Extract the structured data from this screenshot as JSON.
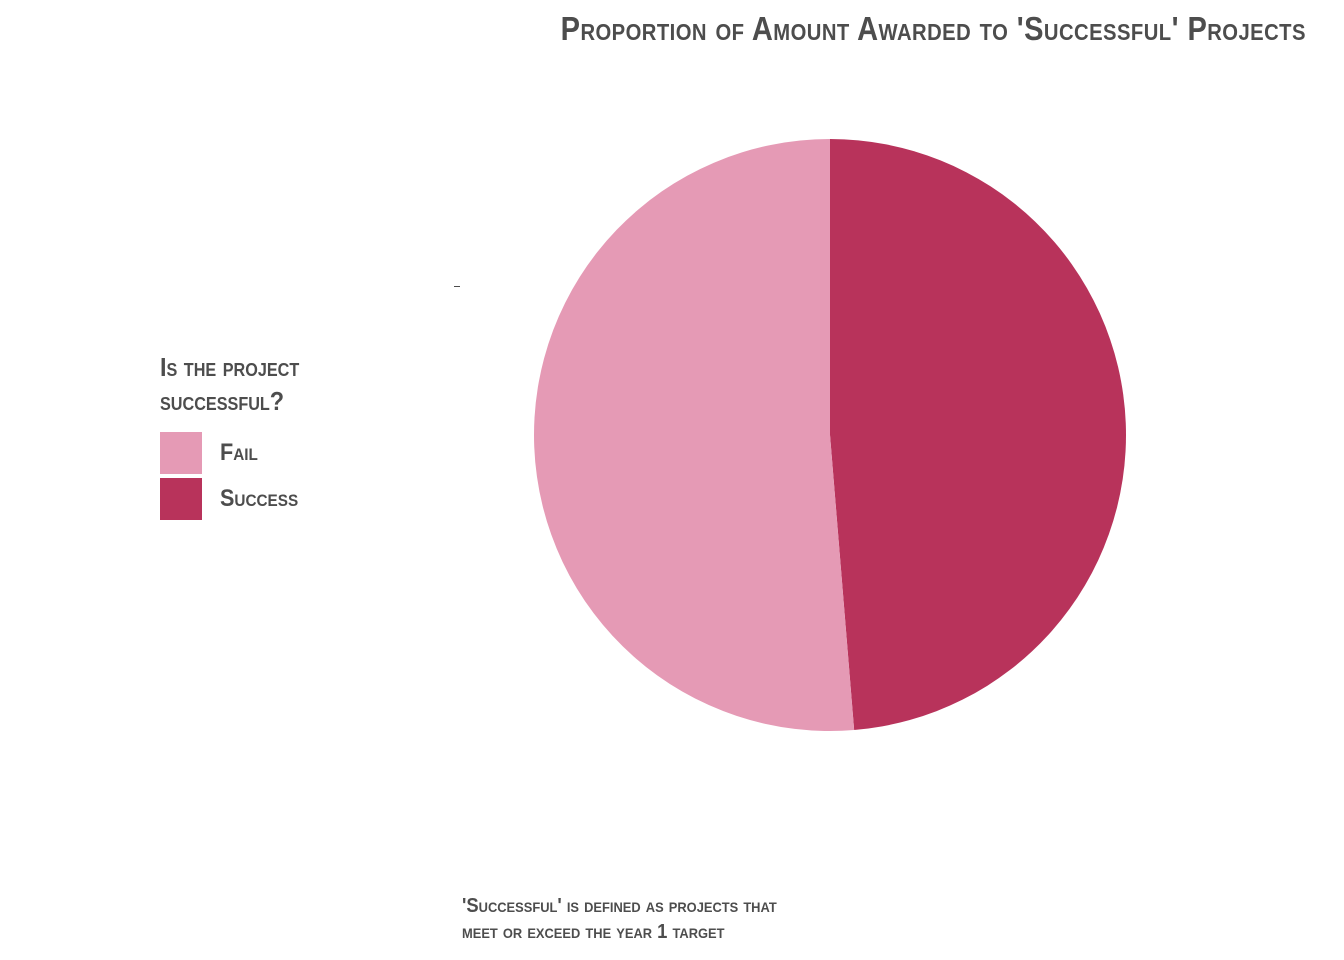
{
  "chart_data": {
    "type": "pie",
    "title": "Proportion of Amount Awarded to 'Successful' Projects",
    "legend_title": "Is the project successful?",
    "legend_position": "left",
    "categories": [
      "Fail",
      "Success"
    ],
    "values": [
      0.513,
      0.487
    ],
    "colors": [
      "#e59ab5",
      "#b8335b"
    ],
    "start_angle_deg": 0,
    "direction": "clockwise-from-top",
    "caption": "'Successful' is defined as projects that meet or exceed the year 1 target",
    "caption_lines": [
      "'Successful' is defined as projects that",
      "meet or exceed the year 1 target"
    ]
  }
}
